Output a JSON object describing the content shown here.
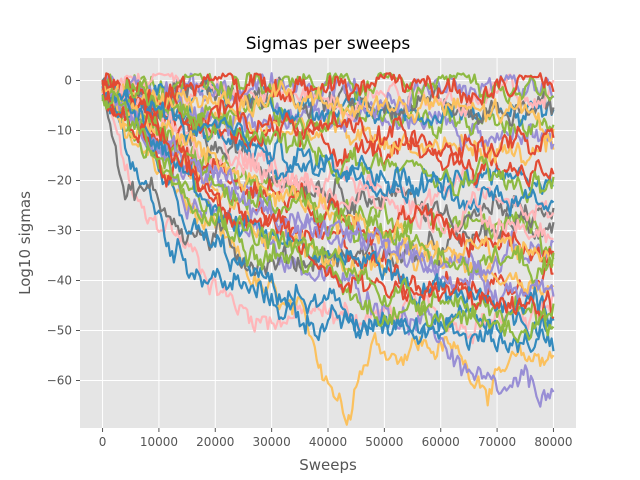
{
  "chart_data": {
    "type": "line",
    "title": "Sigmas per sweeps",
    "xlabel": "Sweeps",
    "ylabel": "Log10 sigmas",
    "xlim": [
      -4000,
      84000
    ],
    "ylim": [
      -69.5,
      4.5
    ],
    "xticks": [
      0,
      10000,
      20000,
      30000,
      40000,
      50000,
      60000,
      70000,
      80000
    ],
    "xtick_labels": [
      "0",
      "10000",
      "20000",
      "30000",
      "40000",
      "50000",
      "60000",
      "70000",
      "80000"
    ],
    "yticks": [
      0,
      -10,
      -20,
      -30,
      -40,
      -50,
      -60
    ],
    "ytick_labels": [
      "0",
      "−10",
      "−20",
      "−30",
      "−40",
      "−50",
      "−60"
    ],
    "grid": true,
    "legend": "none",
    "style": "ggplot",
    "colors": [
      "#E24A33",
      "#348ABD",
      "#988ED5",
      "#777777",
      "#FBC15E",
      "#8EBA42",
      "#FFB5B8"
    ],
    "x_range": [
      0,
      80000
    ],
    "series": [
      {
        "color": "#FFB5B8",
        "keypoints": [
          [
            0,
            -1
          ],
          [
            5000,
            -22
          ],
          [
            8000,
            -30
          ],
          [
            12000,
            -29
          ],
          [
            20000,
            -40
          ],
          [
            22000,
            -43
          ],
          [
            25000,
            -46
          ],
          [
            28000,
            -47
          ]
        ]
      },
      {
        "color": "#FBC15E",
        "keypoints": [
          [
            0,
            -2
          ],
          [
            10000,
            -18
          ],
          [
            20000,
            -32
          ],
          [
            30000,
            -44
          ],
          [
            35000,
            -49
          ],
          [
            40000,
            -58
          ],
          [
            43000,
            -66
          ],
          [
            45000,
            -58
          ],
          [
            48000,
            -52
          ],
          [
            52000,
            -54
          ],
          [
            55000,
            -52
          ],
          [
            62000,
            -54
          ],
          [
            66000,
            -58
          ],
          [
            70000,
            -60
          ],
          [
            80000,
            -54
          ]
        ]
      },
      {
        "color": "#988ED5",
        "keypoints": [
          [
            0,
            -2
          ],
          [
            20000,
            -28
          ],
          [
            30000,
            -33
          ],
          [
            40000,
            -40
          ],
          [
            50000,
            -44
          ],
          [
            60000,
            -52
          ],
          [
            68000,
            -62
          ],
          [
            70000,
            -65
          ],
          [
            75000,
            -62
          ],
          [
            80000,
            -63
          ]
        ]
      },
      {
        "color": "#348ABD",
        "keypoints": [
          [
            0,
            -2
          ],
          [
            12000,
            -33
          ],
          [
            18000,
            -38
          ],
          [
            25000,
            -42
          ],
          [
            35000,
            -47
          ],
          [
            45000,
            -50
          ],
          [
            55000,
            -47
          ],
          [
            65000,
            -52
          ],
          [
            75000,
            -52
          ],
          [
            80000,
            -52
          ]
        ]
      },
      {
        "color": "#777777",
        "keypoints": [
          [
            0,
            -2
          ],
          [
            2000,
            -10
          ],
          [
            4000,
            -20
          ],
          [
            6000,
            -21
          ],
          [
            10000,
            -24
          ],
          [
            15000,
            -30
          ],
          [
            30000,
            -36
          ],
          [
            45000,
            -35
          ],
          [
            60000,
            -35
          ],
          [
            70000,
            -30
          ],
          [
            80000,
            -28
          ]
        ]
      },
      {
        "color": "#348ABD",
        "keypoints": [
          [
            0,
            -2
          ],
          [
            15000,
            -30
          ],
          [
            30000,
            -42
          ],
          [
            45000,
            -48
          ],
          [
            55000,
            -52
          ],
          [
            65000,
            -48
          ],
          [
            80000,
            -47
          ]
        ]
      },
      {
        "color": "#8EBA42",
        "keypoints": [
          [
            0,
            -2
          ],
          [
            15000,
            -24
          ],
          [
            30000,
            -33
          ],
          [
            40000,
            -38
          ],
          [
            50000,
            -45
          ],
          [
            65000,
            -44
          ],
          [
            80000,
            -48
          ]
        ]
      },
      {
        "color": "#E24A33",
        "keypoints": [
          [
            0,
            -2
          ],
          [
            10000,
            -15
          ],
          [
            25000,
            -27
          ],
          [
            45000,
            -35
          ],
          [
            65000,
            -42
          ],
          [
            80000,
            -37
          ]
        ]
      },
      {
        "color": "#FBC15E",
        "keypoints": [
          [
            0,
            -2
          ],
          [
            20000,
            -23
          ],
          [
            40000,
            -36
          ],
          [
            60000,
            -37
          ],
          [
            80000,
            -40
          ]
        ]
      },
      {
        "color": "#988ED5",
        "keypoints": [
          [
            0,
            -2
          ],
          [
            20000,
            -19
          ],
          [
            40000,
            -32
          ],
          [
            60000,
            -36
          ],
          [
            80000,
            -33
          ]
        ]
      },
      {
        "color": "#8EBA42",
        "keypoints": [
          [
            0,
            -2
          ],
          [
            20000,
            -17
          ],
          [
            40000,
            -25
          ],
          [
            60000,
            -28
          ],
          [
            80000,
            -31
          ]
        ]
      },
      {
        "color": "#777777",
        "keypoints": [
          [
            0,
            -2
          ],
          [
            20000,
            -14
          ],
          [
            40000,
            -20
          ],
          [
            60000,
            -26
          ],
          [
            80000,
            -27
          ]
        ]
      },
      {
        "color": "#FFB5B8",
        "keypoints": [
          [
            0,
            -2
          ],
          [
            20000,
            -13
          ],
          [
            40000,
            -20
          ],
          [
            60000,
            -22
          ],
          [
            80000,
            -25
          ]
        ]
      },
      {
        "color": "#348ABD",
        "keypoints": [
          [
            0,
            -2
          ],
          [
            20000,
            -11
          ],
          [
            40000,
            -17
          ],
          [
            60000,
            -19
          ],
          [
            80000,
            -21
          ]
        ]
      },
      {
        "color": "#E24A33",
        "keypoints": [
          [
            0,
            -2
          ],
          [
            20000,
            -9
          ],
          [
            40000,
            -13
          ],
          [
            60000,
            -16
          ],
          [
            80000,
            -18
          ]
        ]
      },
      {
        "color": "#FBC15E",
        "keypoints": [
          [
            0,
            -2
          ],
          [
            20000,
            -8
          ],
          [
            40000,
            -11
          ],
          [
            60000,
            -13
          ],
          [
            80000,
            -15
          ]
        ]
      },
      {
        "color": "#988ED5",
        "keypoints": [
          [
            0,
            -2
          ],
          [
            20000,
            -6
          ],
          [
            40000,
            -9
          ],
          [
            60000,
            -10
          ],
          [
            80000,
            -12
          ]
        ]
      },
      {
        "color": "#8EBA42",
        "keypoints": [
          [
            0,
            -2
          ],
          [
            20000,
            -5
          ],
          [
            40000,
            -7
          ],
          [
            60000,
            -8
          ],
          [
            80000,
            -9
          ]
        ]
      },
      {
        "color": "#348ABD",
        "keypoints": [
          [
            0,
            -2
          ],
          [
            20000,
            -4
          ],
          [
            40000,
            -6
          ],
          [
            60000,
            -7
          ],
          [
            80000,
            -6
          ]
        ]
      },
      {
        "color": "#777777",
        "keypoints": [
          [
            0,
            -2
          ],
          [
            20000,
            -3
          ],
          [
            40000,
            -4
          ],
          [
            60000,
            -5
          ],
          [
            80000,
            -5
          ]
        ]
      },
      {
        "color": "#FFB5B8",
        "keypoints": [
          [
            0,
            -2
          ],
          [
            20000,
            -3
          ],
          [
            40000,
            -3
          ],
          [
            56000,
            -1
          ],
          [
            60000,
            -3
          ],
          [
            80000,
            -3
          ]
        ]
      },
      {
        "color": "#988ED5",
        "keypoints": [
          [
            0,
            -2
          ],
          [
            20000,
            -2
          ],
          [
            40000,
            -3
          ],
          [
            60000,
            -2
          ],
          [
            80000,
            -2
          ]
        ]
      },
      {
        "color": "#8EBA42",
        "keypoints": [
          [
            0,
            -1
          ],
          [
            10000,
            0
          ],
          [
            30000,
            -1
          ],
          [
            50000,
            -1
          ],
          [
            80000,
            -1
          ]
        ]
      },
      {
        "color": "#E24A33",
        "keypoints": [
          [
            0,
            -1
          ],
          [
            20000,
            -1
          ],
          [
            40000,
            -1
          ],
          [
            60000,
            -1
          ],
          [
            80000,
            -1
          ]
        ]
      },
      {
        "color": "#FBC15E",
        "keypoints": [
          [
            0,
            -2
          ],
          [
            20000,
            -5
          ],
          [
            40000,
            -4
          ],
          [
            60000,
            -6
          ],
          [
            80000,
            -8
          ]
        ]
      },
      {
        "color": "#E24A33",
        "keypoints": [
          [
            0,
            -2
          ],
          [
            20000,
            -7
          ],
          [
            40000,
            -10
          ],
          [
            60000,
            -12
          ],
          [
            80000,
            -14
          ]
        ]
      },
      {
        "color": "#8EBA42",
        "keypoints": [
          [
            0,
            -2
          ],
          [
            20000,
            -10
          ],
          [
            40000,
            -15
          ],
          [
            60000,
            -20
          ],
          [
            80000,
            -22
          ]
        ]
      },
      {
        "color": "#348ABD",
        "keypoints": [
          [
            0,
            -2
          ],
          [
            20000,
            -12
          ],
          [
            40000,
            -18
          ],
          [
            60000,
            -22
          ],
          [
            80000,
            -24
          ]
        ]
      },
      {
        "color": "#FFB5B8",
        "keypoints": [
          [
            0,
            -2
          ],
          [
            20000,
            -15
          ],
          [
            40000,
            -22
          ],
          [
            60000,
            -28
          ],
          [
            80000,
            -30
          ]
        ]
      },
      {
        "color": "#E24A33",
        "keypoints": [
          [
            0,
            -2
          ],
          [
            20000,
            -18
          ],
          [
            40000,
            -25
          ],
          [
            60000,
            -30
          ],
          [
            80000,
            -34
          ]
        ]
      },
      {
        "color": "#FBC15E",
        "keypoints": [
          [
            0,
            -2
          ],
          [
            20000,
            -16
          ],
          [
            40000,
            -28
          ],
          [
            60000,
            -32
          ],
          [
            80000,
            -36
          ]
        ]
      },
      {
        "color": "#8EBA42",
        "keypoints": [
          [
            0,
            -2
          ],
          [
            20000,
            -20
          ],
          [
            40000,
            -28
          ],
          [
            60000,
            -34
          ],
          [
            80000,
            -38
          ]
        ]
      },
      {
        "color": "#988ED5",
        "keypoints": [
          [
            0,
            -2
          ],
          [
            20000,
            -22
          ],
          [
            40000,
            -30
          ],
          [
            60000,
            -38
          ],
          [
            80000,
            -42
          ]
        ]
      },
      {
        "color": "#348ABD",
        "keypoints": [
          [
            0,
            -2
          ],
          [
            20000,
            -25
          ],
          [
            40000,
            -35
          ],
          [
            60000,
            -42
          ],
          [
            80000,
            -45
          ]
        ]
      },
      {
        "color": "#E24A33",
        "keypoints": [
          [
            0,
            -2
          ],
          [
            20000,
            -22
          ],
          [
            40000,
            -38
          ],
          [
            60000,
            -43
          ],
          [
            80000,
            -46
          ]
        ]
      },
      {
        "color": "#8EBA42",
        "keypoints": [
          [
            0,
            -2
          ],
          [
            20000,
            -26
          ],
          [
            40000,
            -36
          ],
          [
            60000,
            -46
          ],
          [
            80000,
            -50
          ]
        ]
      }
    ]
  }
}
